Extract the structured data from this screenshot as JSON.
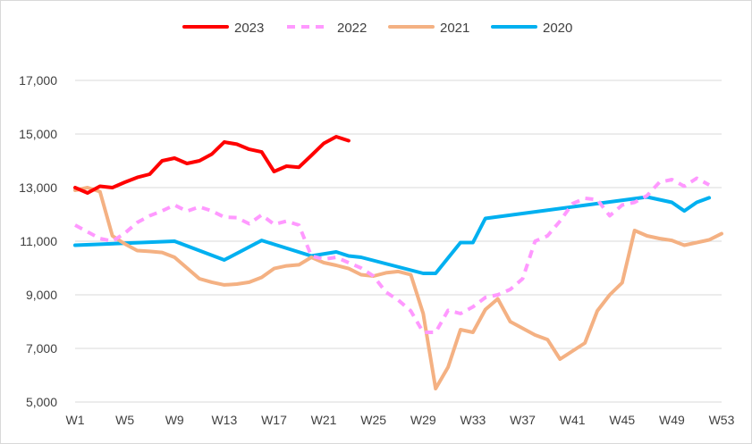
{
  "chart_data": {
    "type": "line",
    "title": "",
    "xlabel": "",
    "ylabel": "",
    "ylim": [
      5000,
      17000
    ],
    "y_ticks": [
      "5,000",
      "7,000",
      "9,000",
      "11,000",
      "13,000",
      "15,000",
      "17,000"
    ],
    "y_tick_values": [
      5000,
      7000,
      9000,
      11000,
      13000,
      15000,
      17000
    ],
    "x_tick_labels": [
      "W1",
      "W5",
      "W9",
      "W13",
      "W17",
      "W21",
      "W25",
      "W29",
      "W33",
      "W37",
      "W41",
      "W45",
      "W49",
      "W53"
    ],
    "x_tick_weeks": [
      1,
      5,
      9,
      13,
      17,
      21,
      25,
      29,
      33,
      37,
      41,
      45,
      49,
      53
    ],
    "xlim": [
      1,
      53
    ],
    "grid": "horizontal",
    "legend_position": "top",
    "series": [
      {
        "name": "2023",
        "color": "#ff0000",
        "dash": "solid",
        "points": [
          [
            1,
            13000
          ],
          [
            2,
            12800
          ],
          [
            3,
            13050
          ],
          [
            4,
            13000
          ],
          [
            5,
            13200
          ],
          [
            6,
            13380
          ],
          [
            7,
            13500
          ],
          [
            8,
            14000
          ],
          [
            9,
            14100
          ],
          [
            10,
            13900
          ],
          [
            11,
            14000
          ],
          [
            12,
            14250
          ],
          [
            13,
            14700
          ],
          [
            14,
            14620
          ],
          [
            15,
            14430
          ],
          [
            16,
            14330
          ],
          [
            17,
            13600
          ],
          [
            18,
            13800
          ],
          [
            19,
            13760
          ],
          [
            20,
            14200
          ],
          [
            21,
            14650
          ],
          [
            22,
            14900
          ],
          [
            23,
            14750
          ]
        ]
      },
      {
        "name": "2022",
        "color": "#ff99ff",
        "dash": "dashed",
        "points": [
          [
            1,
            11600
          ],
          [
            2,
            11350
          ],
          [
            3,
            11100
          ],
          [
            4,
            11000
          ],
          [
            5,
            11300
          ],
          [
            6,
            11700
          ],
          [
            7,
            11950
          ],
          [
            8,
            12130
          ],
          [
            9,
            12350
          ],
          [
            10,
            12120
          ],
          [
            11,
            12280
          ],
          [
            12,
            12130
          ],
          [
            13,
            11900
          ],
          [
            14,
            11880
          ],
          [
            15,
            11650
          ],
          [
            16,
            11980
          ],
          [
            17,
            11630
          ],
          [
            18,
            11750
          ],
          [
            19,
            11600
          ],
          [
            20,
            10450
          ],
          [
            21,
            10330
          ],
          [
            22,
            10400
          ],
          [
            23,
            10200
          ],
          [
            24,
            10000
          ],
          [
            25,
            9700
          ],
          [
            26,
            9100
          ],
          [
            27,
            8800
          ],
          [
            28,
            8400
          ],
          [
            29,
            7600
          ],
          [
            30,
            7600
          ],
          [
            31,
            8420
          ],
          [
            32,
            8300
          ],
          [
            33,
            8550
          ],
          [
            34,
            8900
          ],
          [
            35,
            9000
          ],
          [
            36,
            9200
          ],
          [
            37,
            9600
          ],
          [
            38,
            11000
          ],
          [
            39,
            11200
          ],
          [
            40,
            11750
          ],
          [
            41,
            12400
          ],
          [
            42,
            12600
          ],
          [
            43,
            12550
          ],
          [
            44,
            11950
          ],
          [
            45,
            12350
          ],
          [
            46,
            12450
          ],
          [
            47,
            12700
          ],
          [
            48,
            13200
          ],
          [
            49,
            13300
          ],
          [
            50,
            13050
          ],
          [
            51,
            13350
          ],
          [
            52,
            13100
          ]
        ]
      },
      {
        "name": "2021",
        "color": "#f4b183",
        "dash": "solid",
        "points": [
          [
            1,
            12900
          ],
          [
            2,
            13000
          ],
          [
            3,
            12850
          ],
          [
            4,
            11200
          ],
          [
            5,
            10900
          ],
          [
            6,
            10650
          ],
          [
            7,
            10620
          ],
          [
            8,
            10580
          ],
          [
            9,
            10400
          ],
          [
            10,
            10000
          ],
          [
            11,
            9600
          ],
          [
            12,
            9470
          ],
          [
            13,
            9370
          ],
          [
            14,
            9400
          ],
          [
            15,
            9470
          ],
          [
            16,
            9650
          ],
          [
            17,
            9980
          ],
          [
            18,
            10080
          ],
          [
            19,
            10120
          ],
          [
            20,
            10400
          ],
          [
            21,
            10200
          ],
          [
            22,
            10100
          ],
          [
            23,
            9980
          ],
          [
            24,
            9750
          ],
          [
            25,
            9700
          ],
          [
            26,
            9820
          ],
          [
            27,
            9870
          ],
          [
            28,
            9750
          ],
          [
            29,
            8300
          ],
          [
            30,
            5500
          ],
          [
            31,
            6300
          ],
          [
            32,
            7700
          ],
          [
            33,
            7600
          ],
          [
            34,
            8450
          ],
          [
            35,
            8850
          ],
          [
            36,
            8000
          ],
          [
            37,
            7750
          ],
          [
            38,
            7500
          ],
          [
            39,
            7330
          ],
          [
            40,
            6600
          ],
          [
            41,
            6900
          ],
          [
            42,
            7200
          ],
          [
            43,
            8400
          ],
          [
            44,
            9000
          ],
          [
            45,
            9450
          ],
          [
            46,
            11400
          ],
          [
            47,
            11200
          ],
          [
            48,
            11100
          ],
          [
            49,
            11030
          ],
          [
            50,
            10850
          ],
          [
            51,
            10950
          ],
          [
            52,
            11050
          ],
          [
            53,
            11280
          ]
        ]
      },
      {
        "name": "2020",
        "color": "#00b0f0",
        "dash": "solid",
        "points": [
          [
            1,
            10850
          ],
          [
            9,
            11000
          ],
          [
            13,
            10300
          ],
          [
            16,
            11030
          ],
          [
            20,
            10450
          ],
          [
            22,
            10600
          ],
          [
            23,
            10450
          ],
          [
            24,
            10400
          ],
          [
            29,
            9800
          ],
          [
            30,
            9800
          ],
          [
            32,
            10950
          ],
          [
            33,
            10950
          ],
          [
            34,
            11850
          ],
          [
            47,
            12650
          ],
          [
            49,
            12450
          ],
          [
            50,
            12130
          ],
          [
            51,
            12450
          ],
          [
            52,
            12620
          ]
        ]
      }
    ]
  }
}
